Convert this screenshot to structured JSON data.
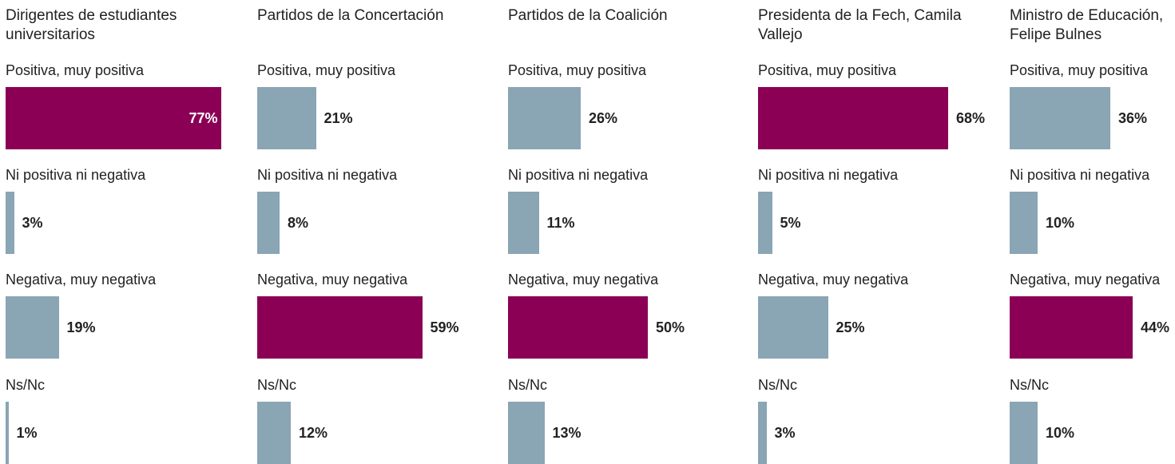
{
  "chart_data": [
    {
      "type": "hbar",
      "title": "Dirigentes de estudiantes universitarios",
      "categories": [
        "Positiva, muy positiva",
        "Ni positiva ni negativa",
        "Negativa, muy negativa",
        "Ns/Nc"
      ],
      "values": [
        77,
        3,
        19,
        1
      ],
      "value_labels": [
        "77%",
        "3%",
        "19%",
        "1%"
      ],
      "colors": [
        "#8b0055",
        "#8aa5b4",
        "#8aa5b4",
        "#8aa5b4"
      ]
    },
    {
      "type": "hbar",
      "title": "Partidos de la Concertación",
      "categories": [
        "Positiva, muy positiva",
        "Ni positiva ni negativa",
        "Negativa, muy negativa",
        "Ns/Nc"
      ],
      "values": [
        21,
        8,
        59,
        12
      ],
      "value_labels": [
        "21%",
        "8%",
        "59%",
        "12%"
      ],
      "colors": [
        "#8aa5b4",
        "#8aa5b4",
        "#8b0055",
        "#8aa5b4"
      ]
    },
    {
      "type": "hbar",
      "title": "Partidos de la Coalición",
      "categories": [
        "Positiva, muy positiva",
        "Ni positiva ni negativa",
        "Negativa, muy negativa",
        "Ns/Nc"
      ],
      "values": [
        26,
        11,
        50,
        13
      ],
      "value_labels": [
        "26%",
        "11%",
        "50%",
        "13%"
      ],
      "colors": [
        "#8aa5b4",
        "#8aa5b4",
        "#8b0055",
        "#8aa5b4"
      ]
    },
    {
      "type": "hbar",
      "title": "Presidenta de la Fech, Camila Vallejo",
      "categories": [
        "Positiva, muy positiva",
        "Ni positiva ni negativa",
        "Negativa, muy negativa",
        "Ns/Nc"
      ],
      "values": [
        68,
        5,
        25,
        3
      ],
      "value_labels": [
        "68%",
        "5%",
        "25%",
        "3%"
      ],
      "colors": [
        "#8b0055",
        "#8aa5b4",
        "#8aa5b4",
        "#8aa5b4"
      ]
    },
    {
      "type": "hbar",
      "title": "Ministro de Educación, Felipe Bulnes",
      "categories": [
        "Positiva, muy positiva",
        "Ni positiva ni negativa",
        "Negativa, muy negativa",
        "Ns/Nc"
      ],
      "values": [
        36,
        10,
        44,
        10
      ],
      "value_labels": [
        "36%",
        "10%",
        "44%",
        "10%"
      ],
      "colors": [
        "#8aa5b4",
        "#8aa5b4",
        "#8b0055",
        "#8aa5b4"
      ]
    }
  ]
}
